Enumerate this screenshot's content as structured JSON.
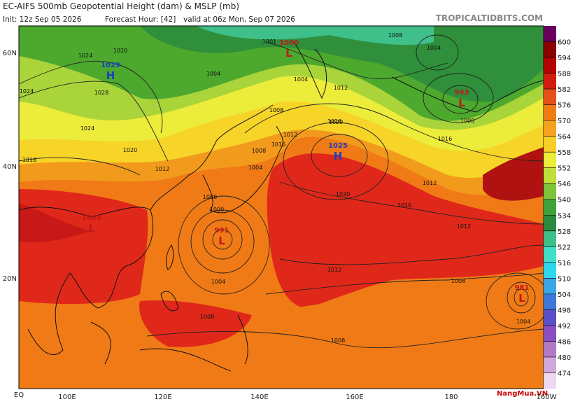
{
  "header": {
    "title": "EC-AIFS 500mb Geopotential Height (dam) & MSLP (mb)",
    "init": "Init: 12z Sep 05 2026",
    "forecast_hour": "Forecast Hour: [42]",
    "valid": "valid at 06z Mon, Sep 07 2026",
    "site": "TROPICALTIDBITS.COM"
  },
  "lat_labels": [
    "60N",
    "40N",
    "20N",
    "EQ"
  ],
  "lon_labels": [
    "100E",
    "120E",
    "140E",
    "160E",
    "180",
    "160W"
  ],
  "colorbar": {
    "labels": [
      600,
      594,
      588,
      582,
      576,
      570,
      564,
      558,
      552,
      546,
      540,
      534,
      528,
      522,
      516,
      510,
      504,
      498,
      492,
      486,
      480,
      474
    ]
  },
  "centers": [
    {
      "letter": "H",
      "value": "1029"
    },
    {
      "letter": "L",
      "value": "1000"
    },
    {
      "letter": "L",
      "value": "993"
    },
    {
      "letter": "H",
      "value": "1025"
    },
    {
      "letter": "L",
      "value": "991"
    },
    {
      "letter": "L",
      "value": "981"
    },
    {
      "letter": "L",
      "value": "1003"
    }
  ],
  "isobar_labels": [
    "1024",
    "1020",
    "1028",
    "1024",
    "1016",
    "1020",
    "1012",
    "1008",
    "1004",
    "1016",
    "1012",
    "1008",
    "1004",
    "1000",
    "1004",
    "1008",
    "1016",
    "1020",
    "1016",
    "1012",
    "1012",
    "1008",
    "1008",
    "1004",
    "1008",
    "1004",
    "1012",
    "1008",
    "1016",
    "1012",
    "1020",
    "1024",
    "1008",
    "1004",
    "1001"
  ],
  "watermark": "NangMua.VN"
}
